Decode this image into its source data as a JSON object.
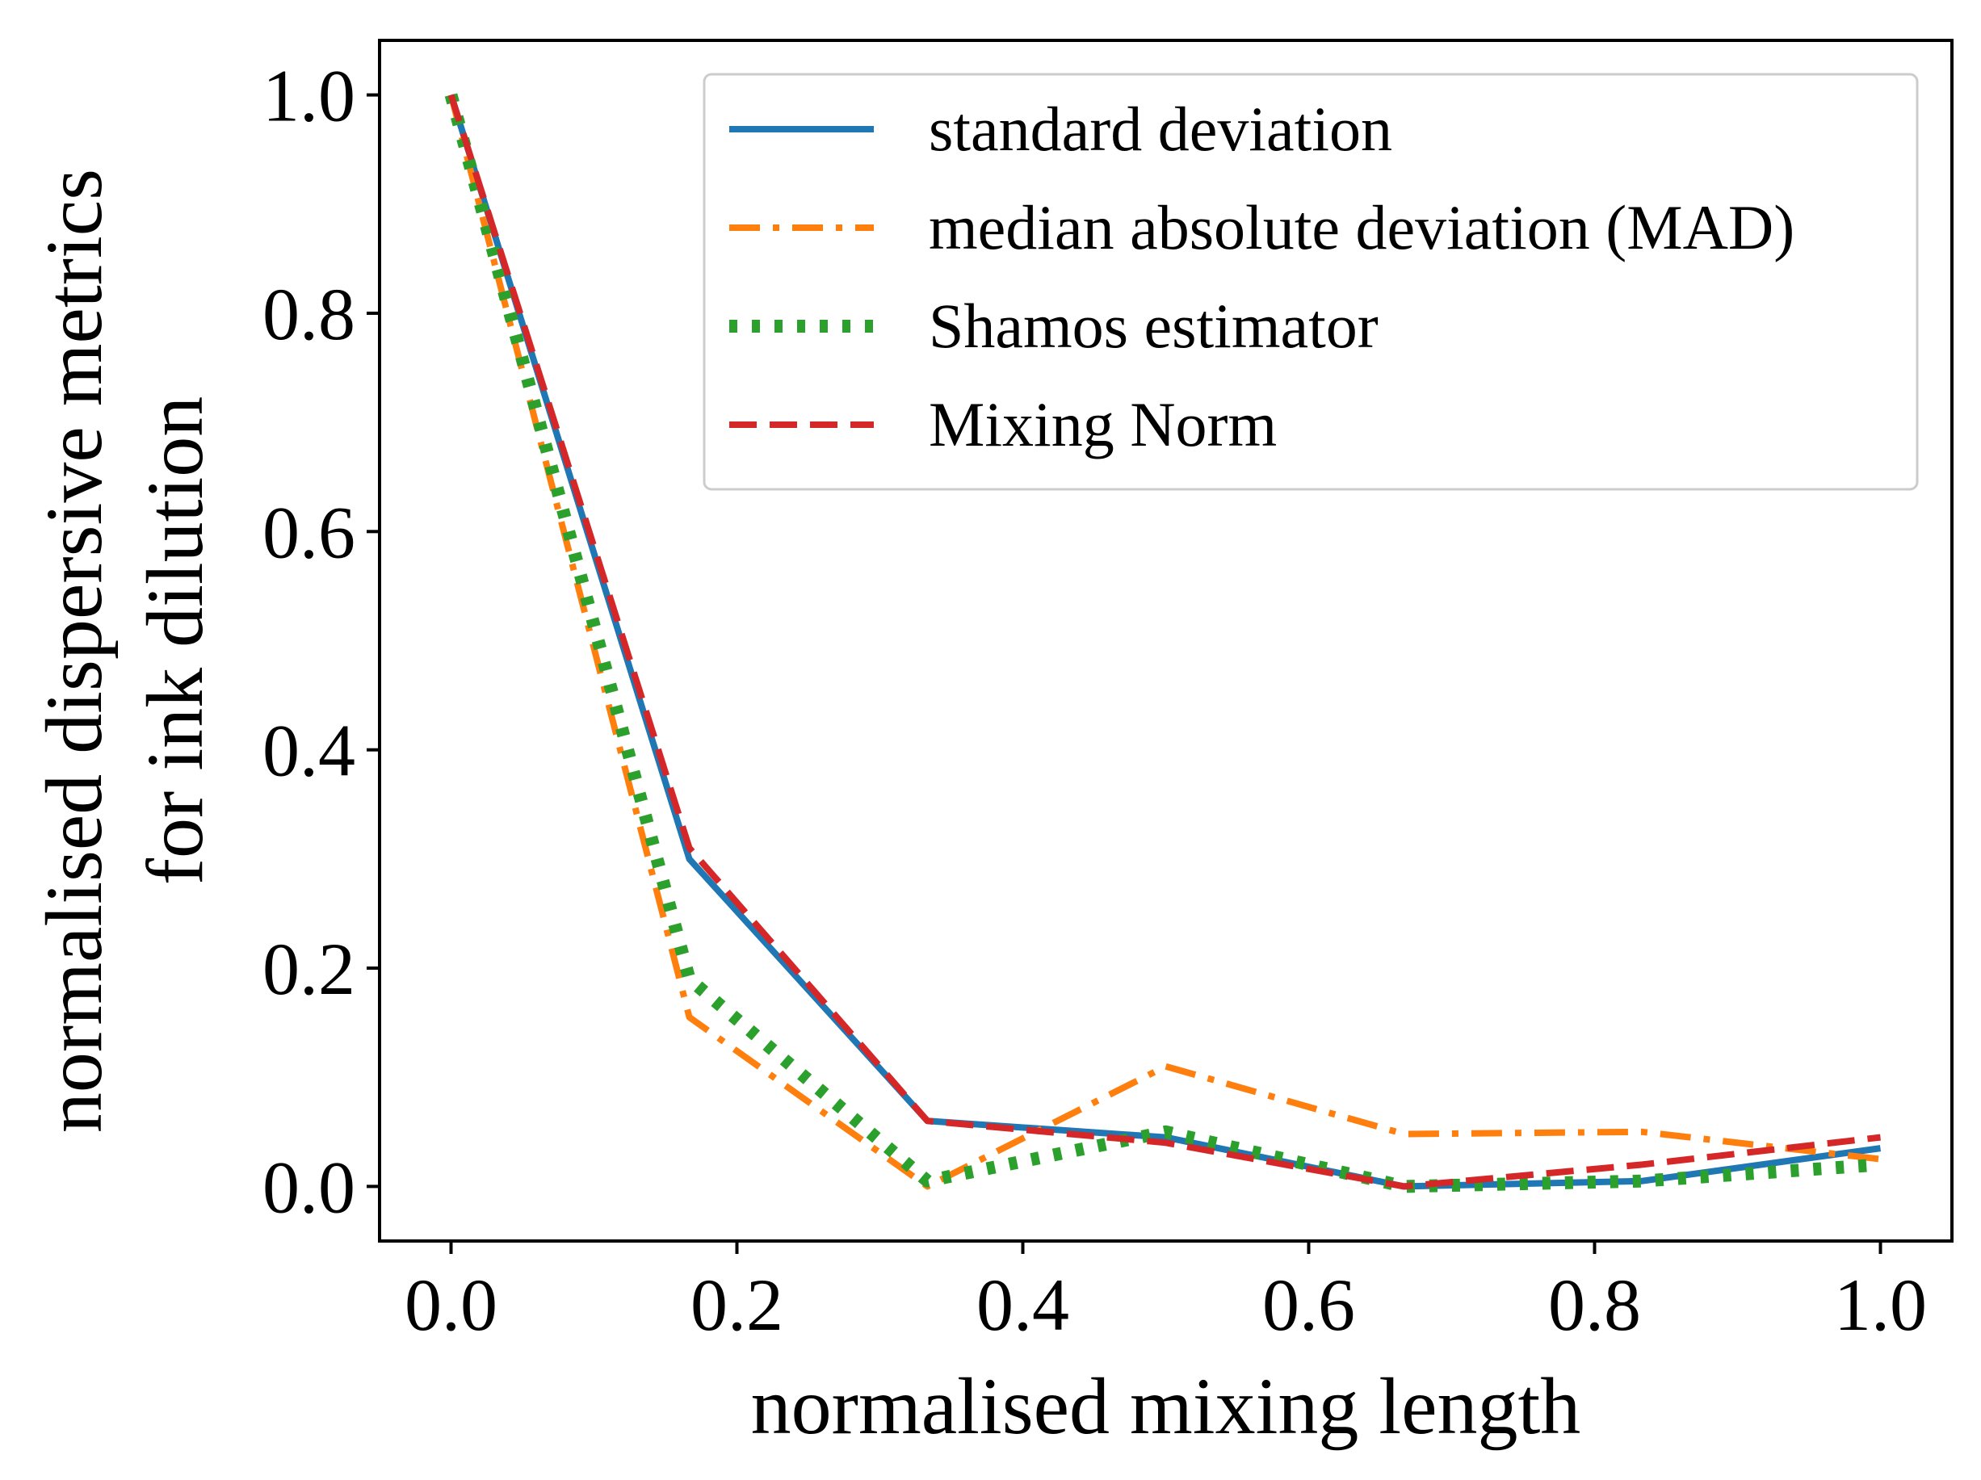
{
  "chart_data": {
    "type": "line",
    "xlabel": "normalised mixing length",
    "ylabel_lines": [
      "normalised dispersive metrics",
      "for ink dilution"
    ],
    "xlim": [
      -0.05,
      1.05
    ],
    "ylim": [
      -0.05,
      1.05
    ],
    "xticks": [
      0.0,
      0.2,
      0.4,
      0.6,
      0.8,
      1.0
    ],
    "xtick_labels": [
      "0.0",
      "0.2",
      "0.4",
      "0.6",
      "0.8",
      "1.0"
    ],
    "yticks": [
      0.0,
      0.2,
      0.4,
      0.6,
      0.8,
      1.0
    ],
    "ytick_labels": [
      "0.0",
      "0.2",
      "0.4",
      "0.6",
      "0.8",
      "1.0"
    ],
    "grid": false,
    "legend_position": "top-right",
    "x": [
      0.0,
      0.1667,
      0.3333,
      0.5,
      0.6667,
      0.8333,
      1.0
    ],
    "series": [
      {
        "name": "standard deviation",
        "color": "#1f77b4",
        "style": "solid",
        "values": [
          1.0,
          0.3,
          0.06,
          0.045,
          0.0,
          0.005,
          0.035
        ]
      },
      {
        "name": "median absolute deviation (MAD)",
        "color": "#ff7f0e",
        "style": "dashdot",
        "values": [
          1.0,
          0.155,
          0.0,
          0.11,
          0.048,
          0.05,
          0.025
        ]
      },
      {
        "name": "Shamos estimator",
        "color": "#2ca02c",
        "style": "dotted",
        "values": [
          1.0,
          0.19,
          0.005,
          0.05,
          0.0,
          0.005,
          0.02
        ]
      },
      {
        "name": "Mixing Norm",
        "color": "#d62728",
        "style": "dashed",
        "values": [
          1.0,
          0.31,
          0.06,
          0.04,
          0.0,
          0.02,
          0.045
        ]
      }
    ]
  }
}
